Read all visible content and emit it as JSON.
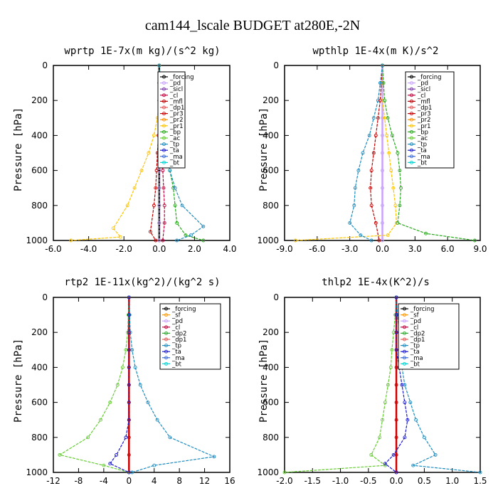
{
  "title": "cam144_lscale  BUDGET at280E,-2N",
  "ylabel": "Pressure [hPa]",
  "chart_data": [
    {
      "type": "line",
      "title": "wprtp  1E-7x(m kg)/(s^2 kg)",
      "xlim": [
        -6,
        4
      ],
      "xticks": [
        "-6.0",
        "-4.0",
        "-2.0",
        "0.0",
        "2.0",
        "4.0"
      ],
      "xtick_values": [
        -6,
        -4,
        -2,
        0,
        2,
        4
      ],
      "ylim": [
        1000,
        0
      ],
      "yticks": [
        "0",
        "200",
        "400",
        "600",
        "800",
        "1000"
      ],
      "ytick_values": [
        0,
        200,
        400,
        600,
        800,
        1000
      ],
      "legend": [
        "_forcing",
        "_pd",
        "_sicl",
        "_cl",
        "_mfl",
        "_dp1",
        "_pr3",
        "_pr2",
        "_pr1",
        "_bp",
        "_ac",
        "_tp",
        "_ta",
        "_ma",
        "_bt"
      ],
      "series": [
        {
          "name": "_forcing",
          "color": "#000000",
          "x": [
            0,
            0,
            0,
            0,
            0,
            0,
            0,
            0,
            0,
            0,
            0
          ],
          "y": [
            0,
            100,
            200,
            300,
            400,
            500,
            600,
            700,
            800,
            900,
            1000
          ]
        },
        {
          "name": "_pd",
          "color": "#c8a2ff",
          "x": [
            0,
            0,
            0,
            0,
            0,
            0,
            0,
            0,
            0,
            0,
            0
          ],
          "y": [
            0,
            100,
            200,
            300,
            400,
            500,
            600,
            700,
            800,
            900,
            1000
          ]
        },
        {
          "name": "_cl",
          "color": "#c0003c",
          "x": [
            0,
            0,
            0,
            0,
            0.1,
            0.15,
            0.2,
            0.25,
            0.3,
            0.3,
            0.2
          ],
          "y": [
            0,
            100,
            200,
            300,
            400,
            500,
            600,
            700,
            800,
            900,
            1000
          ]
        },
        {
          "name": "_mfl",
          "color": "#c00000",
          "x": [
            0,
            0,
            0,
            0,
            -0.05,
            -0.1,
            -0.15,
            -0.2,
            -0.3,
            -0.5,
            -0.2
          ],
          "y": [
            0,
            100,
            200,
            300,
            400,
            500,
            600,
            700,
            800,
            950,
            1000
          ]
        },
        {
          "name": "_pr1",
          "color": "#ffc400",
          "x": [
            0,
            0,
            0,
            -0.1,
            -0.3,
            -0.6,
            -1.0,
            -1.4,
            -1.8,
            -2.6,
            -2.2,
            -5.0
          ],
          "y": [
            0,
            100,
            200,
            300,
            400,
            500,
            600,
            700,
            800,
            930,
            980,
            1000
          ]
        },
        {
          "name": "_bp",
          "color": "#29a81d",
          "x": [
            0,
            0,
            0,
            0.05,
            0.2,
            0.4,
            0.6,
            0.8,
            0.9,
            1.0,
            1.5,
            2.5
          ],
          "y": [
            0,
            100,
            200,
            300,
            400,
            500,
            600,
            700,
            800,
            900,
            970,
            1000
          ]
        },
        {
          "name": "_tp",
          "color": "#1e8cc0",
          "x": [
            0,
            0,
            0,
            0.05,
            0.2,
            0.4,
            0.6,
            0.9,
            1.3,
            2.5,
            1.8,
            1.0
          ],
          "y": [
            0,
            100,
            200,
            300,
            400,
            500,
            600,
            700,
            800,
            920,
            970,
            1000
          ]
        }
      ]
    },
    {
      "type": "line",
      "title": "wpthlp  1E-4x(m K)/s^2",
      "xlim": [
        -9,
        9
      ],
      "xticks": [
        "-9.0",
        "-6.0",
        "-3.0",
        "0.0",
        "3.0",
        "6.0",
        "9.0"
      ],
      "xtick_values": [
        -9,
        -6,
        -3,
        0,
        3,
        6,
        9
      ],
      "ylim": [
        1000,
        0
      ],
      "yticks": [
        "0",
        "200",
        "400",
        "600",
        "800",
        "1000"
      ],
      "ytick_values": [
        0,
        200,
        400,
        600,
        800,
        1000
      ],
      "legend": [
        "_forcing",
        "_pd",
        "_sicl",
        "_cl",
        "_mfl",
        "_dp1",
        "_pr3",
        "_pr2",
        "_pr1",
        "_bp",
        "_ac",
        "_tp",
        "_ta",
        "_ma",
        "_bt"
      ],
      "series": [
        {
          "name": "_forcing",
          "color": "#c8a2ff",
          "x": [
            0,
            0,
            0,
            0,
            0,
            0,
            0,
            0,
            0,
            0,
            0
          ],
          "y": [
            0,
            100,
            200,
            300,
            400,
            500,
            600,
            700,
            800,
            900,
            1000
          ]
        },
        {
          "name": "_mfl",
          "color": "#c00000",
          "x": [
            0,
            -0.1,
            -0.2,
            -0.4,
            -0.6,
            -0.8,
            -1.0,
            -1.1,
            -1.0,
            -0.6,
            -0.3
          ],
          "y": [
            0,
            100,
            200,
            300,
            400,
            500,
            600,
            700,
            800,
            900,
            1000
          ]
        },
        {
          "name": "_pr1",
          "color": "#ffc400",
          "x": [
            0,
            0,
            0,
            0.2,
            0.4,
            0.6,
            0.8,
            1.0,
            1.2,
            1.3,
            0.5,
            -8.0
          ],
          "y": [
            0,
            100,
            200,
            300,
            400,
            500,
            600,
            700,
            800,
            900,
            970,
            1000
          ]
        },
        {
          "name": "_bp",
          "color": "#29a81d",
          "x": [
            0,
            0.1,
            0.2,
            0.5,
            0.9,
            1.4,
            1.6,
            1.7,
            1.6,
            1.4,
            4.0,
            8.5
          ],
          "y": [
            0,
            100,
            200,
            300,
            400,
            500,
            600,
            700,
            800,
            900,
            960,
            1000
          ]
        },
        {
          "name": "_tp",
          "color": "#1e8cc0",
          "x": [
            0,
            -0.2,
            -0.4,
            -0.8,
            -1.2,
            -1.8,
            -2.2,
            -2.5,
            -2.6,
            -3.0,
            -2.0,
            -1.0
          ],
          "y": [
            0,
            100,
            200,
            300,
            400,
            500,
            600,
            700,
            800,
            900,
            970,
            1000
          ]
        }
      ]
    },
    {
      "type": "line",
      "title": "rtp2  1E-11x(kg^2)/(kg^2 s)",
      "xlim": [
        -12,
        16
      ],
      "xticks": [
        "-12",
        "-8",
        "-4",
        "0",
        "4",
        "8",
        "12",
        "16"
      ],
      "xtick_values": [
        -12,
        -8,
        -4,
        0,
        4,
        8,
        12,
        16
      ],
      "ylim": [
        1000,
        0
      ],
      "yticks": [
        "0",
        "200",
        "400",
        "600",
        "800",
        "1000"
      ],
      "ytick_values": [
        0,
        200,
        400,
        600,
        800,
        1000
      ],
      "legend": [
        "_forcing",
        "_sf",
        "_pd",
        "_cl",
        "_dp2",
        "_dp1",
        "_tp",
        "_ta",
        "_ma",
        "_bt"
      ],
      "series": [
        {
          "name": "_forcing",
          "color": "#cc0000",
          "x": [
            0,
            0,
            0,
            0,
            0,
            0,
            0,
            0,
            0,
            0,
            0
          ],
          "y": [
            0,
            100,
            200,
            300,
            400,
            500,
            600,
            700,
            800,
            900,
            1000
          ]
        },
        {
          "name": "_dp1",
          "color": "#66cc33",
          "x": [
            0,
            -0.1,
            -0.2,
            -0.5,
            -1.0,
            -1.8,
            -3.0,
            -4.5,
            -6.5,
            -11.0,
            -4.0,
            0
          ],
          "y": [
            0,
            100,
            200,
            300,
            400,
            500,
            600,
            700,
            800,
            900,
            960,
            1000
          ]
        },
        {
          "name": "_tp",
          "color": "#1e8cc0",
          "x": [
            0,
            0.1,
            0.2,
            0.5,
            1.0,
            1.8,
            3.0,
            4.5,
            6.5,
            13.5,
            4.0,
            0.5
          ],
          "y": [
            0,
            100,
            200,
            300,
            400,
            500,
            600,
            700,
            800,
            910,
            960,
            1000
          ]
        },
        {
          "name": "_ta",
          "color": "#1a1acc",
          "x": [
            0,
            0,
            0,
            0,
            0,
            0,
            0,
            0,
            -0.5,
            -2.0,
            -3.0,
            0
          ],
          "y": [
            0,
            100,
            200,
            300,
            400,
            500,
            600,
            700,
            800,
            900,
            950,
            1000
          ]
        }
      ]
    },
    {
      "type": "line",
      "title": "thlp2  1E-4x(K^2)/s",
      "xlim": [
        -2,
        1.5
      ],
      "xticks": [
        "-2.0",
        "-1.5",
        "-1.0",
        "-0.5",
        "0.0",
        "0.5",
        "1.0",
        "1.5"
      ],
      "xtick_values": [
        -2,
        -1.5,
        -1,
        -0.5,
        0,
        0.5,
        1,
        1.5
      ],
      "ylim": [
        1000,
        0
      ],
      "yticks": [
        "0",
        "200",
        "400",
        "600",
        "800",
        "1000"
      ],
      "ytick_values": [
        0,
        200,
        400,
        600,
        800,
        1000
      ],
      "legend": [
        "_forcing",
        "_sf",
        "_pd",
        "_cl",
        "_dp2",
        "_dp1",
        "_tp",
        "_ta",
        "_ma",
        "_bt"
      ],
      "series": [
        {
          "name": "_forcing",
          "color": "#cc0000",
          "x": [
            0,
            0,
            0,
            0,
            0,
            0,
            0,
            0,
            0,
            0,
            0
          ],
          "y": [
            0,
            100,
            200,
            300,
            400,
            500,
            600,
            700,
            800,
            900,
            1000
          ]
        },
        {
          "name": "_dp1",
          "color": "#66cc33",
          "x": [
            0,
            -0.02,
            -0.05,
            -0.08,
            -0.1,
            -0.15,
            -0.2,
            -0.25,
            -0.3,
            -0.45,
            -0.2,
            -2.0
          ],
          "y": [
            0,
            100,
            200,
            300,
            400,
            500,
            600,
            700,
            800,
            900,
            960,
            1000
          ]
        },
        {
          "name": "_tp",
          "color": "#1e8cc0",
          "x": [
            0,
            0.02,
            0.05,
            0.08,
            0.1,
            0.15,
            0.25,
            0.35,
            0.5,
            0.7,
            0.3,
            1.5
          ],
          "y": [
            0,
            100,
            200,
            300,
            400,
            500,
            600,
            700,
            800,
            900,
            960,
            1000
          ]
        },
        {
          "name": "_ta",
          "color": "#1a1acc",
          "x": [
            0,
            0,
            0,
            0,
            0.05,
            0.1,
            0.15,
            0.2,
            0.15,
            -0.05,
            -0.2,
            0
          ],
          "y": [
            0,
            100,
            200,
            300,
            400,
            500,
            600,
            700,
            800,
            900,
            950,
            1000
          ]
        }
      ]
    }
  ]
}
